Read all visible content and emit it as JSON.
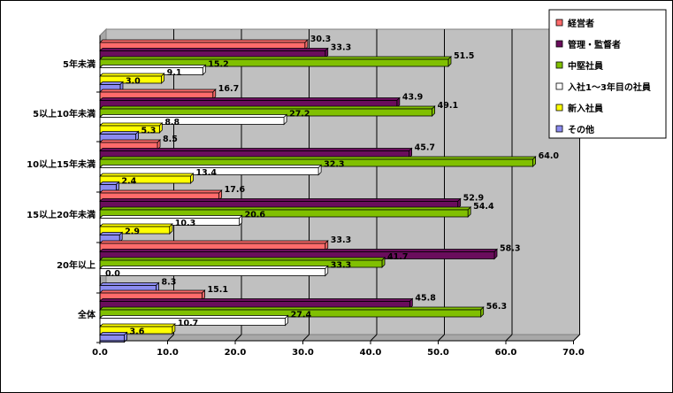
{
  "chart_data": {
    "type": "bar",
    "orientation": "horizontal",
    "categories": [
      "5年未満",
      "5以上10年未満",
      "10以上15年未満",
      "15以上20年未満",
      "20年以上",
      "全体"
    ],
    "series": [
      {
        "name": "経営者",
        "color": "#FF6B6B",
        "values": [
          30.3,
          16.7,
          8.5,
          17.6,
          33.3,
          15.1
        ]
      },
      {
        "name": "管理・監督者",
        "color": "#6A0D5C",
        "values": [
          33.3,
          43.9,
          45.7,
          52.9,
          58.3,
          45.8
        ]
      },
      {
        "name": "中堅社員",
        "color": "#80C000",
        "values": [
          51.5,
          49.1,
          64.0,
          54.4,
          41.7,
          56.3
        ]
      },
      {
        "name": "入社1～3年目の社員",
        "color": "#FFFFFF",
        "values": [
          15.2,
          27.2,
          32.3,
          20.6,
          33.3,
          27.4
        ]
      },
      {
        "name": "新入社員",
        "color": "#FFFF00",
        "values": [
          9.1,
          8.8,
          13.4,
          10.3,
          0.0,
          10.7
        ]
      },
      {
        "name": "その他",
        "color": "#8C8CF0",
        "values": [
          3.0,
          5.3,
          2.4,
          2.9,
          8.3,
          3.6
        ]
      }
    ],
    "x_ticks": [
      "0.0",
      "10.0",
      "20.0",
      "30.0",
      "40.0",
      "50.0",
      "60.0",
      "70.0"
    ],
    "xlim": [
      0,
      70
    ],
    "grid": true,
    "legend_position": "top-right",
    "plot_background": "#C0C0C0"
  }
}
